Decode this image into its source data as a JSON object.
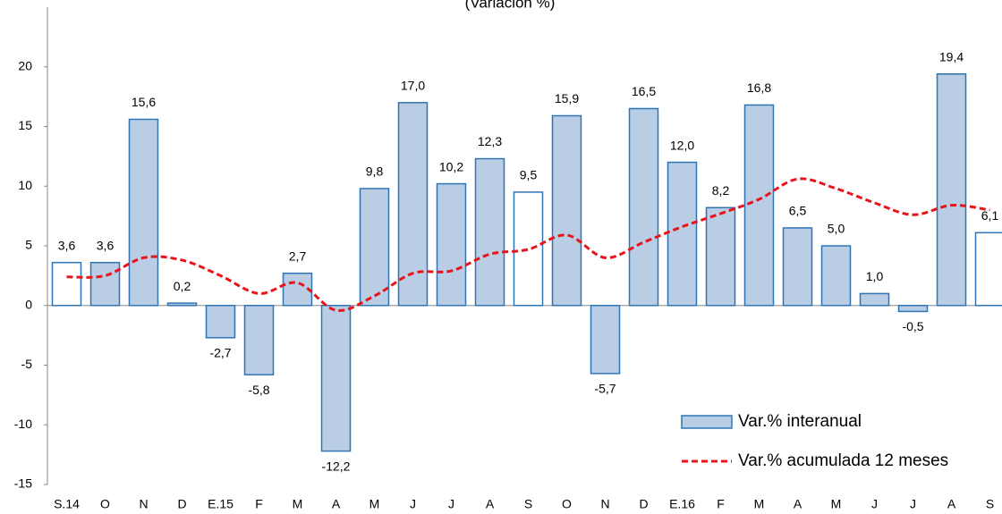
{
  "chart_data": {
    "type": "bar",
    "title": "(Variación %)",
    "categories": [
      "S.14",
      "O",
      "N",
      "D",
      "E.15",
      "F",
      "M",
      "A",
      "M",
      "J",
      "J",
      "A",
      "S",
      "O",
      "N",
      "D",
      "E.16",
      "F",
      "M",
      "A",
      "M",
      "J",
      "J",
      "A",
      "S"
    ],
    "series": [
      {
        "name": "Var.% interanual",
        "type": "bar",
        "color": "#b9cde5",
        "edge_color": "#2e75b6",
        "bar_colors": [
          "#ffffff",
          "#b9cde5",
          "#b9cde5",
          "#b9cde5",
          "#b9cde5",
          "#b9cde5",
          "#b9cde5",
          "#b9cde5",
          "#b9cde5",
          "#b9cde5",
          "#b9cde5",
          "#b9cde5",
          "#ffffff",
          "#b9cde5",
          "#b9cde5",
          "#b9cde5",
          "#b9cde5",
          "#b9cde5",
          "#b9cde5",
          "#b9cde5",
          "#b9cde5",
          "#b9cde5",
          "#b9cde5",
          "#b9cde5",
          "#ffffff"
        ],
        "values": [
          3.6,
          3.6,
          15.6,
          0.2,
          -2.7,
          -5.8,
          2.7,
          -12.2,
          9.8,
          17.0,
          10.2,
          12.3,
          9.5,
          15.9,
          -5.7,
          16.5,
          12.0,
          8.2,
          16.8,
          6.5,
          5.0,
          1.0,
          -0.5,
          19.4,
          6.1
        ],
        "value_labels": [
          "3,6",
          "3,6",
          "15,6",
          "0,2",
          "-2,7",
          "-5,8",
          "2,7",
          "-12,2",
          "9,8",
          "17,0",
          "10,2",
          "12,3",
          "9,5",
          "15,9",
          "-5,7",
          "16,5",
          "12,0",
          "8,2",
          "16,8",
          "6,5",
          "5,0",
          "1,0",
          "-0,5",
          "19,4",
          "6,1"
        ]
      },
      {
        "name": "Var.% acumulada 12 meses",
        "type": "line",
        "color": "#e8141b",
        "dashed": true,
        "values": [
          2.4,
          2.5,
          4.0,
          3.8,
          2.5,
          1.0,
          1.9,
          -0.4,
          0.8,
          2.7,
          2.9,
          4.3,
          4.7,
          5.9,
          4.0,
          5.3,
          6.6,
          7.7,
          8.9,
          10.6,
          9.8,
          8.6,
          7.6,
          8.4,
          8.0
        ]
      }
    ],
    "ylim": [
      -15,
      25
    ],
    "yticks": [
      -15,
      -10,
      -5,
      0,
      5,
      10,
      15,
      20
    ],
    "legend": "lower right"
  }
}
